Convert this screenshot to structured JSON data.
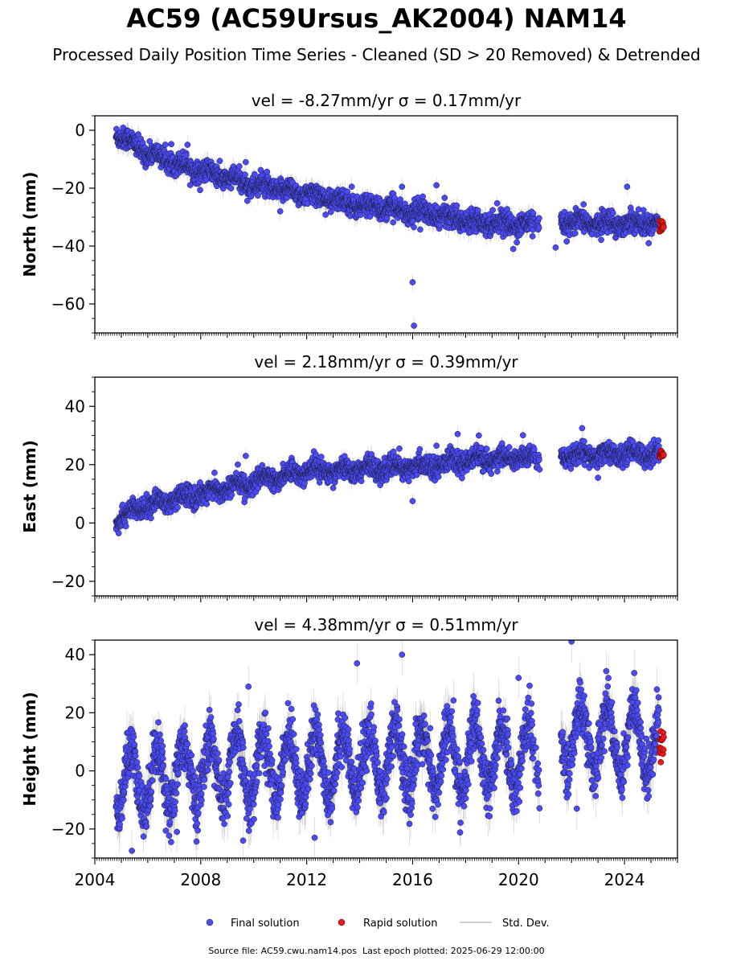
{
  "header": {
    "title": "AC59 (AC59Ursus_AK2004) NAM14",
    "subtitle": "Processed Daily Position Time Series - Cleaned (SD > 20 Removed) & Detrended"
  },
  "colors": {
    "final": "#4b4bf5",
    "rapid": "#e41a1c",
    "stddev": "#b0b0b0",
    "edge": "#1a1a3a"
  },
  "legend": {
    "final": "Final solution",
    "rapid": "Rapid solution",
    "stddev": "Std. Dev."
  },
  "footer": {
    "source": "Source file: AC59.cwu.nam14.pos",
    "last_epoch": "Last epoch plotted: 2025-06-29 12:00:00"
  },
  "chart_data": [
    {
      "type": "scatter",
      "title": "vel = -8.27mm/yr   σ = 0.17mm/yr",
      "ylabel": "North (mm)",
      "xlim": [
        2004.0,
        2026.0
      ],
      "ylim": [
        -70,
        5
      ],
      "yticks": [
        0,
        -20,
        -40,
        -60
      ],
      "ytick_labels": [
        "0",
        "−20",
        "−40",
        "−60"
      ],
      "trend": [
        [
          2004.8,
          -1
        ],
        [
          2006,
          -8
        ],
        [
          2008,
          -14
        ],
        [
          2010,
          -19
        ],
        [
          2012,
          -22
        ],
        [
          2014,
          -26
        ],
        [
          2016,
          -28
        ],
        [
          2018,
          -31
        ],
        [
          2020.7,
          -33
        ],
        [
          2021.6,
          -32
        ],
        [
          2025.4,
          -32
        ]
      ],
      "seasonal_amp": 1.0,
      "noise": 1.8,
      "std_mean": 2.5,
      "gap": [
        2020.8,
        2021.6
      ],
      "outliers": [
        [
          2016.0,
          -52.5
        ],
        [
          2016.05,
          -67.5
        ],
        [
          2015.6,
          -19.5
        ],
        [
          2013.7,
          -19.5
        ],
        [
          2016.9,
          -19.0
        ],
        [
          2024.1,
          -19.5
        ],
        [
          2009.7,
          -11
        ],
        [
          2007.5,
          -5
        ],
        [
          2011.0,
          -28
        ],
        [
          2019.8,
          -41
        ],
        [
          2021.4,
          -40.5
        ]
      ],
      "rapid": {
        "x": [
          2025.32,
          2025.48
        ],
        "center": -33,
        "spread": 1.5
      }
    },
    {
      "type": "scatter",
      "title": "vel = 2.18mm/yr   σ = 0.39mm/yr",
      "ylabel": "East (mm)",
      "xlim": [
        2004.0,
        2026.0
      ],
      "ylim": [
        -25,
        50
      ],
      "yticks": [
        40,
        20,
        0,
        -20
      ],
      "ytick_labels": [
        "40",
        "20",
        "0",
        "−20"
      ],
      "trend": [
        [
          2004.8,
          1.5
        ],
        [
          2006,
          6
        ],
        [
          2008,
          10
        ],
        [
          2010,
          14
        ],
        [
          2012,
          18
        ],
        [
          2014,
          18.5
        ],
        [
          2016,
          19
        ],
        [
          2018,
          21.5
        ],
        [
          2020.7,
          22.5
        ],
        [
          2021.6,
          23
        ],
        [
          2025.4,
          24
        ]
      ],
      "seasonal_amp": 1.2,
      "noise": 1.7,
      "std_mean": 2.2,
      "gap": [
        2020.8,
        2021.6
      ],
      "outliers": [
        [
          2009.7,
          23
        ],
        [
          2015.5,
          25.5
        ],
        [
          2016.0,
          7.5
        ],
        [
          2017.7,
          30.5
        ],
        [
          2018.5,
          30
        ],
        [
          2022.4,
          32.5
        ],
        [
          2023.0,
          15.5
        ],
        [
          2004.9,
          -3.5
        ],
        [
          2016.9,
          26.5
        ],
        [
          2013.0,
          12
        ]
      ],
      "rapid": {
        "x": [
          2025.32,
          2025.48
        ],
        "center": 23.5,
        "spread": 1.2
      }
    },
    {
      "type": "scatter",
      "title": "vel = 4.38mm/yr   σ = 0.51mm/yr",
      "ylabel": "Height (mm)",
      "xlim": [
        2004.0,
        2026.0
      ],
      "ylim": [
        -30,
        45
      ],
      "yticks": [
        40,
        20,
        0,
        -20
      ],
      "ytick_labels": [
        "40",
        "20",
        "0",
        "−20"
      ],
      "xticks": [
        2004,
        2008,
        2012,
        2016,
        2020,
        2024
      ],
      "xtick_labels": [
        "2004",
        "2008",
        "2012",
        "2016",
        "2020",
        "2024"
      ],
      "trend": [
        [
          2004.8,
          -5
        ],
        [
          2008,
          0
        ],
        [
          2012,
          2
        ],
        [
          2016,
          4
        ],
        [
          2020.7,
          5
        ],
        [
          2021.6,
          12
        ],
        [
          2025.4,
          10
        ]
      ],
      "seasonal_amp": 11.0,
      "noise": 4.5,
      "std_mean": 6.0,
      "gap": [
        2020.8,
        2021.6
      ],
      "outliers": [
        [
          2015.6,
          40
        ],
        [
          2022.0,
          44.5
        ],
        [
          2013.9,
          37
        ],
        [
          2020.0,
          32
        ],
        [
          2009.8,
          29
        ],
        [
          2005.4,
          -27.5
        ],
        [
          2012.3,
          -23
        ],
        [
          2009.6,
          -24
        ],
        [
          2007.1,
          -21
        ],
        [
          2022.2,
          -13
        ]
      ],
      "rapid": {
        "x": [
          2025.32,
          2025.48
        ],
        "center": 10,
        "spread": 3.0,
        "extra": [
          3
        ]
      }
    }
  ]
}
